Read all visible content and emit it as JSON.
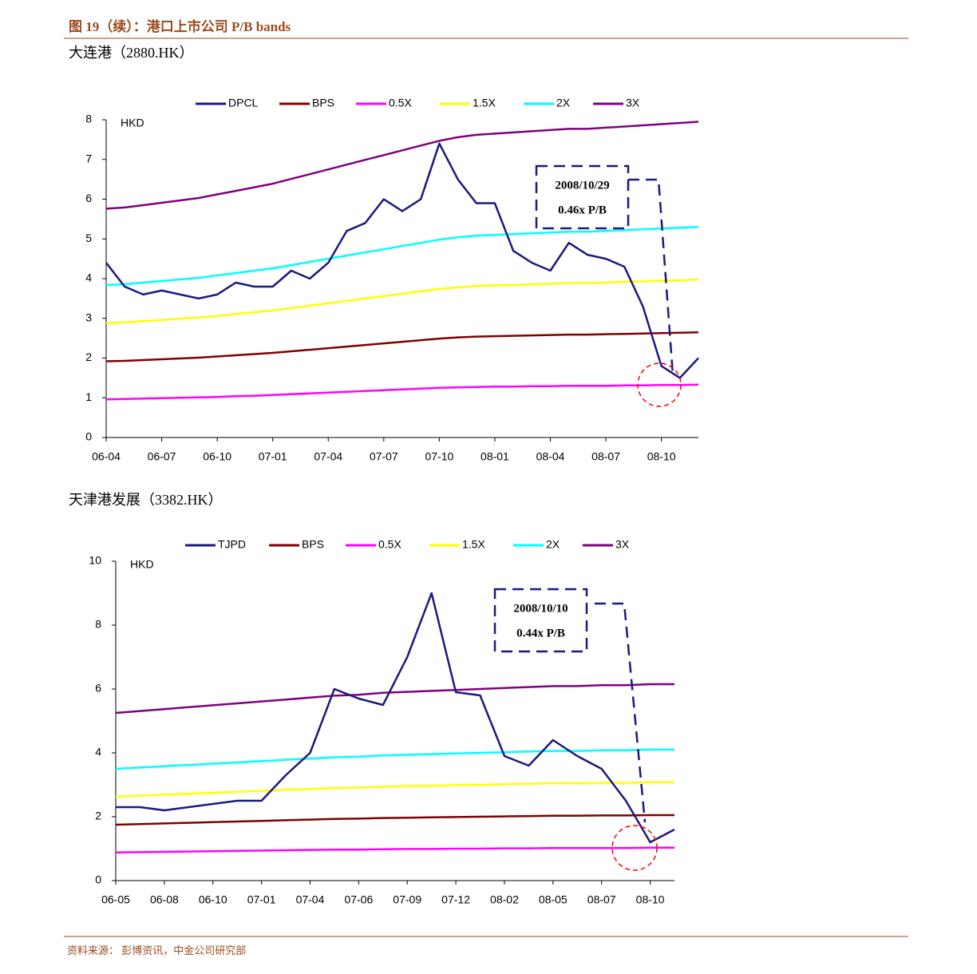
{
  "header": {
    "title": "图 19（续）：港口上市公司 P/B bands"
  },
  "chart_data": [
    {
      "type": "line",
      "title": "大连港（2880.HK）",
      "y_label": "HKD",
      "categories": [
        "06-04",
        null,
        null,
        "06-07",
        null,
        null,
        "06-10",
        null,
        null,
        "07-01",
        null,
        null,
        "07-04",
        null,
        null,
        "07-07",
        null,
        null,
        "07-10",
        null,
        null,
        "08-01",
        null,
        null,
        "08-04",
        null,
        null,
        "08-07",
        null,
        null,
        "08-10",
        null,
        null
      ],
      "ylim": [
        0,
        8
      ],
      "yticks": [
        0,
        1,
        2,
        3,
        4,
        5,
        6,
        7,
        8
      ],
      "legend": "top",
      "annotations": [
        "2008/10/29",
        "0.46x P/B"
      ],
      "series": [
        {
          "name": "DPCL",
          "color": "#1a1a80",
          "values": [
            4.4,
            3.8,
            3.6,
            3.7,
            3.6,
            3.5,
            3.6,
            3.9,
            3.8,
            3.8,
            4.2,
            4.0,
            4.4,
            5.2,
            5.4,
            6.0,
            5.7,
            6.0,
            7.4,
            6.5,
            5.9,
            5.9,
            4.7,
            4.4,
            4.2,
            4.9,
            4.6,
            4.5,
            4.3,
            3.3,
            1.8,
            1.5,
            2.0
          ]
        },
        {
          "name": "BPS",
          "color": "#800000",
          "values": [
            1.92,
            1.93,
            1.95,
            1.97,
            1.99,
            2.01,
            2.04,
            2.07,
            2.1,
            2.13,
            2.17,
            2.21,
            2.25,
            2.29,
            2.33,
            2.37,
            2.41,
            2.45,
            2.49,
            2.52,
            2.54,
            2.55,
            2.56,
            2.57,
            2.58,
            2.59,
            2.59,
            2.6,
            2.61,
            2.62,
            2.63,
            2.64,
            2.65
          ]
        },
        {
          "name": "0.5X",
          "color": "#ff00ff",
          "values": [
            0.96,
            0.97,
            0.98,
            0.99,
            1.0,
            1.01,
            1.02,
            1.04,
            1.05,
            1.07,
            1.09,
            1.11,
            1.13,
            1.15,
            1.17,
            1.19,
            1.21,
            1.23,
            1.25,
            1.26,
            1.27,
            1.28,
            1.28,
            1.29,
            1.29,
            1.3,
            1.3,
            1.3,
            1.31,
            1.31,
            1.32,
            1.32,
            1.33
          ]
        },
        {
          "name": "1.5X",
          "color": "#ffff00",
          "values": [
            2.88,
            2.9,
            2.93,
            2.96,
            2.99,
            3.02,
            3.06,
            3.11,
            3.15,
            3.2,
            3.26,
            3.32,
            3.38,
            3.44,
            3.5,
            3.56,
            3.62,
            3.68,
            3.74,
            3.78,
            3.81,
            3.83,
            3.84,
            3.86,
            3.87,
            3.89,
            3.89,
            3.9,
            3.92,
            3.93,
            3.95,
            3.96,
            3.98
          ]
        },
        {
          "name": "2X",
          "color": "#00ffff",
          "values": [
            3.84,
            3.86,
            3.9,
            3.94,
            3.98,
            4.02,
            4.08,
            4.14,
            4.2,
            4.26,
            4.34,
            4.42,
            4.5,
            4.58,
            4.66,
            4.74,
            4.82,
            4.9,
            4.98,
            5.04,
            5.08,
            5.1,
            5.12,
            5.14,
            5.16,
            5.18,
            5.18,
            5.2,
            5.22,
            5.24,
            5.26,
            5.28,
            5.3
          ]
        },
        {
          "name": "3X",
          "color": "#800080",
          "values": [
            5.76,
            5.79,
            5.85,
            5.91,
            5.97,
            6.03,
            6.12,
            6.21,
            6.3,
            6.39,
            6.51,
            6.63,
            6.75,
            6.87,
            6.99,
            7.11,
            7.23,
            7.35,
            7.47,
            7.56,
            7.62,
            7.65,
            7.68,
            7.71,
            7.74,
            7.77,
            7.77,
            7.8,
            7.83,
            7.86,
            7.89,
            7.92,
            7.95
          ]
        }
      ]
    },
    {
      "type": "line",
      "title": "天津港发展（3382.HK）",
      "y_label": "HKD",
      "categories": [
        "06-05",
        null,
        "06-08",
        null,
        "06-10",
        null,
        "07-01",
        null,
        "07-04",
        null,
        "07-06",
        null,
        "07-09",
        null,
        "07-12",
        null,
        "08-02",
        null,
        "08-05",
        null,
        "08-07",
        null,
        "08-10",
        null
      ],
      "ylim": [
        0,
        10
      ],
      "yticks": [
        0,
        2,
        4,
        6,
        8,
        10
      ],
      "legend": "top",
      "annotations": [
        "2008/10/10",
        "0.44x P/B"
      ],
      "series": [
        {
          "name": "TJPD",
          "color": "#1a1a80",
          "values": [
            2.3,
            2.3,
            2.2,
            2.3,
            2.4,
            2.5,
            2.5,
            3.3,
            4.0,
            6.0,
            5.7,
            5.5,
            7.0,
            9.0,
            5.9,
            5.8,
            3.9,
            3.6,
            4.4,
            3.9,
            3.5,
            2.5,
            1.2,
            1.6
          ]
        },
        {
          "name": "BPS",
          "color": "#800000",
          "values": [
            1.75,
            1.77,
            1.79,
            1.81,
            1.83,
            1.85,
            1.87,
            1.89,
            1.91,
            1.93,
            1.94,
            1.96,
            1.97,
            1.98,
            1.99,
            2.0,
            2.01,
            2.02,
            2.03,
            2.03,
            2.04,
            2.04,
            2.05,
            2.05
          ]
        },
        {
          "name": "0.5X",
          "color": "#ff00ff",
          "values": [
            0.88,
            0.89,
            0.9,
            0.91,
            0.92,
            0.93,
            0.94,
            0.95,
            0.96,
            0.97,
            0.97,
            0.98,
            0.99,
            0.99,
            1.0,
            1.0,
            1.01,
            1.01,
            1.02,
            1.02,
            1.02,
            1.02,
            1.03,
            1.03
          ]
        },
        {
          "name": "1.5X",
          "color": "#ffff00",
          "values": [
            2.63,
            2.66,
            2.69,
            2.72,
            2.75,
            2.78,
            2.81,
            2.84,
            2.87,
            2.9,
            2.91,
            2.94,
            2.96,
            2.97,
            2.99,
            3.0,
            3.02,
            3.03,
            3.05,
            3.05,
            3.06,
            3.06,
            3.08,
            3.08
          ]
        },
        {
          "name": "2X",
          "color": "#00ffff",
          "values": [
            3.5,
            3.54,
            3.58,
            3.62,
            3.66,
            3.7,
            3.74,
            3.78,
            3.82,
            3.86,
            3.88,
            3.92,
            3.94,
            3.96,
            3.98,
            4.0,
            4.02,
            4.04,
            4.06,
            4.06,
            4.08,
            4.08,
            4.1,
            4.1
          ]
        },
        {
          "name": "3X",
          "color": "#800080",
          "values": [
            5.25,
            5.31,
            5.37,
            5.43,
            5.49,
            5.55,
            5.61,
            5.67,
            5.73,
            5.79,
            5.82,
            5.88,
            5.91,
            5.94,
            5.97,
            6.0,
            6.03,
            6.06,
            6.09,
            6.09,
            6.12,
            6.12,
            6.15,
            6.15
          ]
        }
      ]
    }
  ],
  "footer": {
    "source": "资料来源： 彭博资讯，中金公司研究部"
  }
}
